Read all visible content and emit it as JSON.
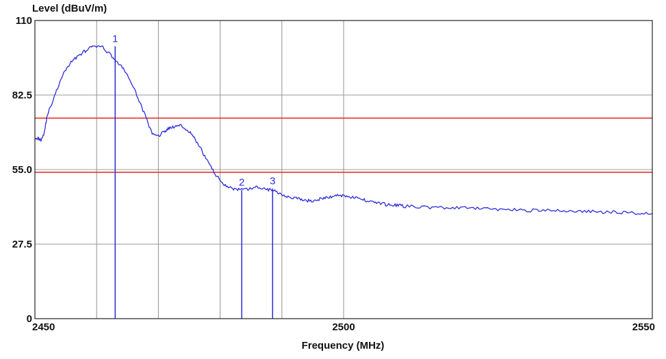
{
  "chart_data": {
    "type": "line",
    "ylabel": "Level (dBuV/m)",
    "xlabel": "Frequency (MHz)",
    "xlim": [
      2450,
      2550
    ],
    "ylim": [
      0,
      110
    ],
    "x_ticks": [
      {
        "value": 2450,
        "label": "2450"
      },
      {
        "value": 2500,
        "label": "2500"
      },
      {
        "value": 2550,
        "label": "2550"
      }
    ],
    "y_ticks": [
      {
        "value": 0,
        "label": "0"
      },
      {
        "value": 27.5,
        "label": "27.5"
      },
      {
        "value": 55,
        "label": "55.0"
      },
      {
        "value": 82.5,
        "label": "82.5"
      },
      {
        "value": 110,
        "label": "110"
      }
    ],
    "vertical_grid": [
      2460,
      2470,
      2480,
      2490,
      2500
    ],
    "grid": true,
    "limit_lines": [
      {
        "value": 74,
        "color": "#e8302e"
      },
      {
        "value": 54,
        "color": "#e8302e"
      }
    ],
    "series": [
      {
        "color": "#2b2bdc",
        "x": [
          2450,
          2450.5,
          2451,
          2451.5,
          2452,
          2453,
          2454,
          2455,
          2456,
          2457,
          2458,
          2459,
          2460,
          2461,
          2462,
          2463,
          2464,
          2465,
          2466,
          2467,
          2468,
          2469,
          2470,
          2471,
          2471.5,
          2472,
          2473,
          2474,
          2475,
          2476,
          2477,
          2478,
          2479,
          2480,
          2481,
          2482,
          2483,
          2484,
          2485,
          2486,
          2487,
          2488,
          2489,
          2490,
          2491,
          2492,
          2493,
          2494,
          2495,
          2496,
          2497,
          2498,
          2499,
          2500,
          2501,
          2502,
          2503,
          2504,
          2505,
          2506,
          2507,
          2508,
          2509,
          2510,
          2512,
          2514,
          2516,
          2518,
          2520,
          2522,
          2524,
          2526,
          2528,
          2530,
          2532,
          2534,
          2536,
          2538,
          2540,
          2542,
          2544,
          2546,
          2548,
          2550
        ],
        "y": [
          67,
          66.5,
          66,
          68.5,
          75,
          81,
          87,
          92,
          95,
          97,
          98.5,
          100,
          100.5,
          100,
          98,
          95.5,
          93,
          90,
          85,
          80,
          74,
          68,
          67.5,
          69,
          70,
          70.5,
          71,
          71,
          69,
          66,
          62,
          58,
          54,
          51,
          49,
          48,
          47.5,
          47.5,
          48,
          48.5,
          48,
          47.5,
          47,
          46,
          45,
          44.5,
          44,
          43.5,
          43.5,
          44,
          44.5,
          45,
          45.5,
          45.5,
          45,
          44.5,
          44,
          43.5,
          43,
          42.5,
          42,
          42,
          41.8,
          41.5,
          41.3,
          41,
          41,
          40.8,
          40.8,
          40.6,
          40.5,
          40.3,
          40.2,
          40,
          40,
          39.8,
          39.8,
          39.6,
          39.5,
          39.3,
          39.3,
          39.1,
          39,
          38.8
        ]
      }
    ],
    "markers": [
      {
        "label": "1",
        "x": 2463,
        "y": 100.5
      },
      {
        "label": "2",
        "x": 2483.5,
        "y": 47.5
      },
      {
        "label": "3",
        "x": 2488.5,
        "y": 48
      }
    ]
  }
}
